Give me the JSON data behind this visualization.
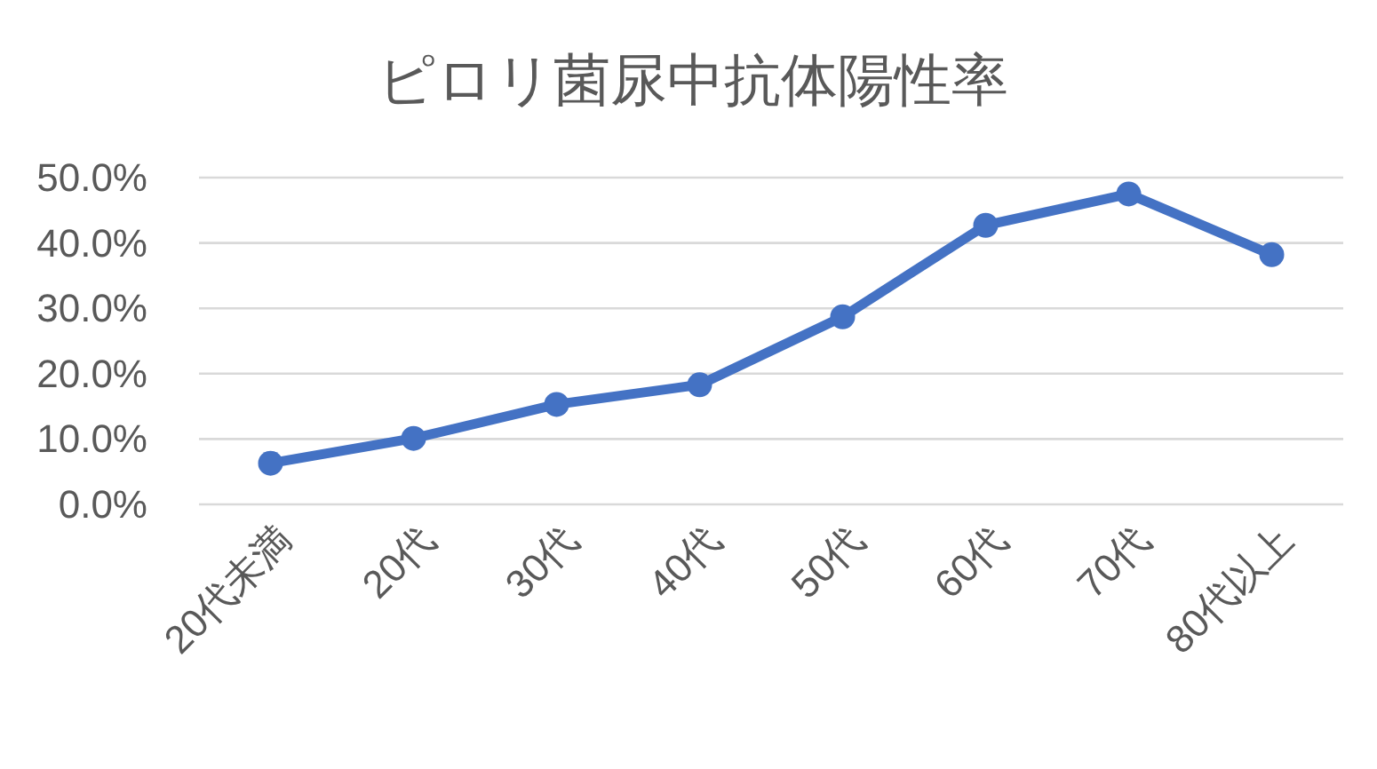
{
  "chart_data": {
    "type": "line",
    "title": "ピロリ菌尿中抗体陽性率",
    "categories": [
      "20代未満",
      "20代",
      "30代",
      "40代",
      "50代",
      "60代",
      "70代",
      "80代以上"
    ],
    "series": [
      {
        "color": "#4472c4",
        "values": [
          6.3,
          10.1,
          15.3,
          18.3,
          28.7,
          42.7,
          47.5,
          38.2
        ]
      }
    ],
    "ylim": [
      0,
      50
    ],
    "yticks": [
      {
        "value": 0,
        "label": "0.0%"
      },
      {
        "value": 10,
        "label": "10.0%"
      },
      {
        "value": 20,
        "label": "20.0%"
      },
      {
        "value": 30,
        "label": "30.0%"
      },
      {
        "value": 40,
        "label": "40.0%"
      },
      {
        "value": 50,
        "label": "50.0%"
      }
    ],
    "grid": "y",
    "marker": "circle",
    "line_style": "solid"
  }
}
